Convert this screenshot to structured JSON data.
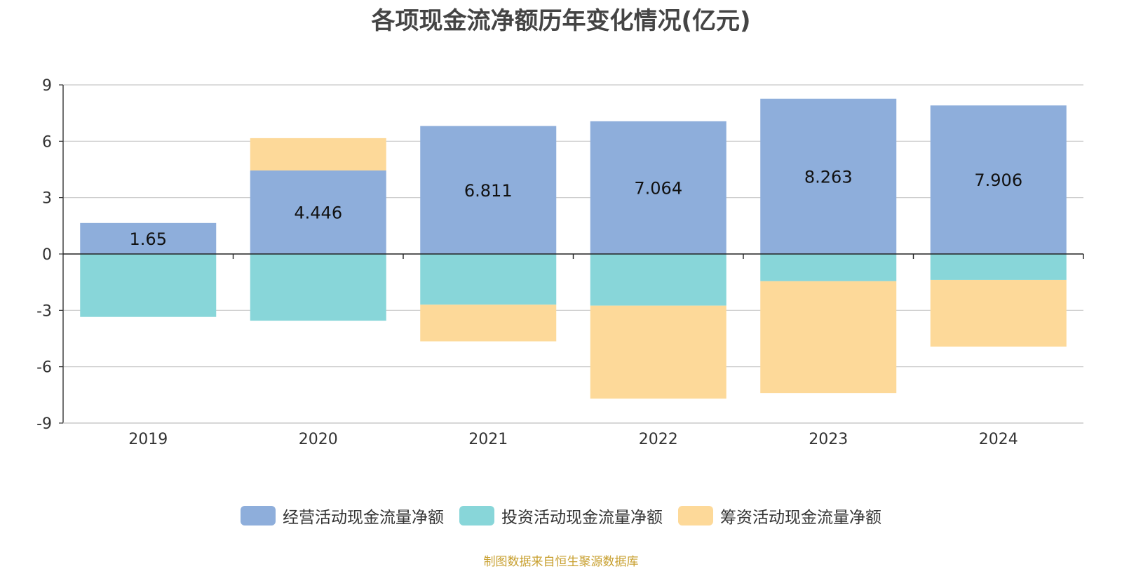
{
  "title": "各项现金流净额历年变化情况(亿元)",
  "source": "制图数据来自恒生聚源数据库",
  "colors": {
    "operating": "#8eaedb",
    "investing": "#88d6d9",
    "financing": "#fdd999"
  },
  "chart_data": {
    "type": "bar",
    "stacked": true,
    "title": "各项现金流净额历年变化情况(亿元)",
    "categories": [
      "2019",
      "2020",
      "2021",
      "2022",
      "2023",
      "2024"
    ],
    "ylim": [
      -9,
      9
    ],
    "yticks": [
      9,
      6,
      3,
      0,
      -3,
      -6,
      -9
    ],
    "grid": true,
    "legend_position": "bottom",
    "series": [
      {
        "name": "经营活动现金流量净额",
        "values": [
          1.65,
          4.446,
          6.811,
          7.064,
          8.263,
          7.906
        ],
        "labels": [
          "1.65",
          "4.446",
          "6.811",
          "7.064",
          "8.263",
          "7.906"
        ]
      },
      {
        "name": "投资活动现金流量净额",
        "values": [
          -3.35,
          -3.55,
          -2.7,
          -2.75,
          -1.45,
          -1.38
        ]
      },
      {
        "name": "筹资活动现金流量净额",
        "values": [
          0,
          1.72,
          -1.95,
          -4.95,
          -5.95,
          -3.55
        ]
      }
    ]
  }
}
